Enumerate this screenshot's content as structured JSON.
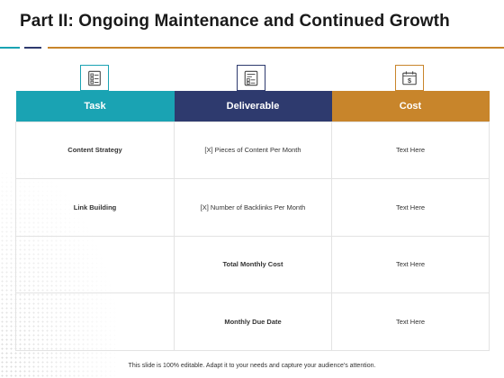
{
  "slide": {
    "title": "Part II: Ongoing Maintenance and Continued Growth",
    "footer": "This slide is 100% editable. Adapt it to your needs and capture your audience's attention."
  },
  "colors": {
    "teal": "#1aa3b3",
    "navy": "#2e3a6e",
    "gold": "#c8852b"
  },
  "icons": {
    "task": "checklist-icon",
    "deliverable": "document-list-icon",
    "cost": "dollar-calendar-icon"
  },
  "table": {
    "headers": [
      "Task",
      "Deliverable",
      "Cost"
    ],
    "rows": [
      [
        "Content Strategy",
        "[X] Pieces of Content Per Month",
        "Text Here"
      ],
      [
        "Link Building",
        "[X]  Number of Backlinks Per Month",
        "Text Here"
      ],
      [
        "",
        "Total Monthly Cost",
        "Text Here"
      ],
      [
        "",
        "Monthly Due Date",
        "Text Here"
      ]
    ]
  }
}
